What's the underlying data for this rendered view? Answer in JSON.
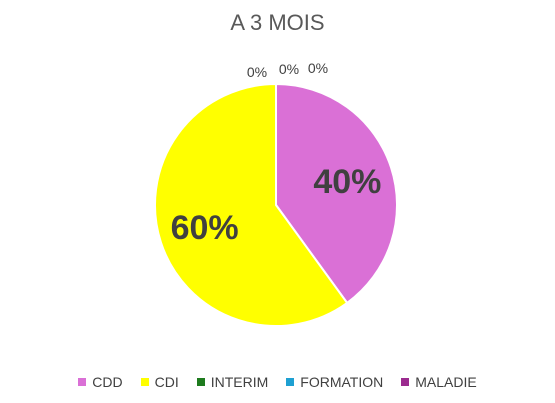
{
  "chart_data": {
    "type": "pie",
    "title": "A 3 MOIS",
    "categories": [
      "CDD",
      "CDI",
      "INTERIM",
      "FORMATION",
      "MALADIE"
    ],
    "values": [
      40,
      60,
      0,
      0,
      0
    ],
    "data_labels": [
      "40%",
      "60%",
      "0%",
      "0%",
      "0%"
    ],
    "colors": [
      "#da70d6",
      "#ffff00",
      "#1e7b1e",
      "#1ea0d2",
      "#9b2b8f"
    ],
    "legend_position": "bottom"
  }
}
